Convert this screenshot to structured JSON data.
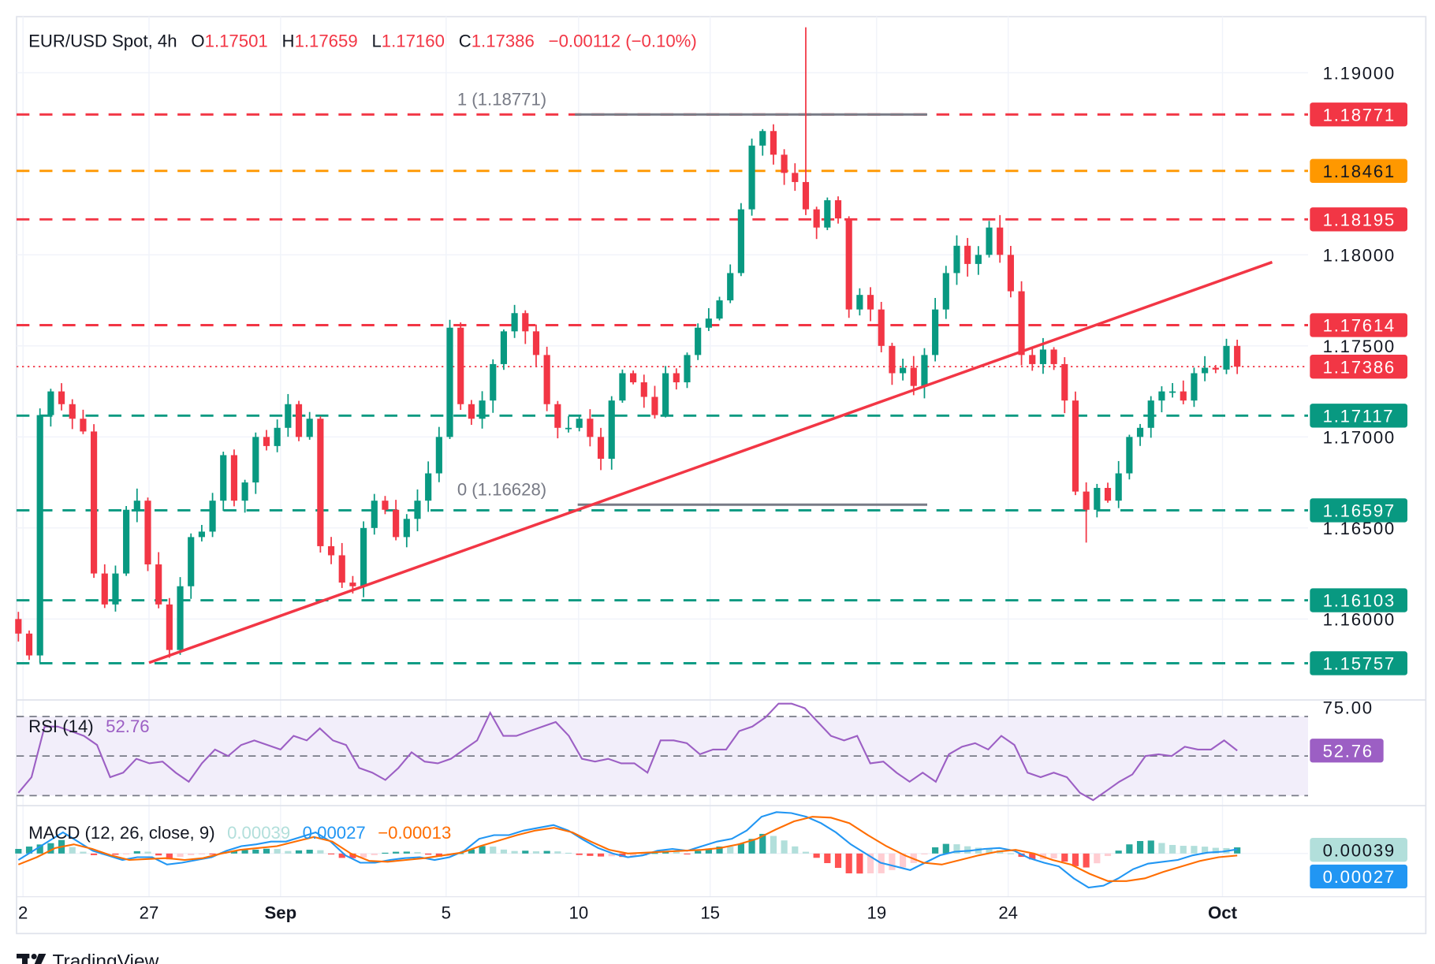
{
  "header": {
    "symbol": "EUR/USD Spot, 4h",
    "o_label": "O",
    "o_value": "1.17501",
    "h_label": "H",
    "h_value": "1.17659",
    "l_label": "L",
    "l_value": "1.17160",
    "c_label": "C",
    "c_value": "1.17386",
    "change": "−0.00112 (−0.10%)"
  },
  "colors": {
    "up": "#089981",
    "down": "#f23645",
    "orange": "#ff9800",
    "rsi": "#9c5fc4",
    "macd": "#2196f3",
    "signal": "#ff6d00",
    "hist_up_strong": "#26a69a",
    "hist_up_weak": "#b2dfdb",
    "hist_down_strong": "#ff5252",
    "hist_down_weak": "#ffcdd2"
  },
  "price_axis": {
    "ticks": [
      "1.19000",
      "1.18000",
      "1.17500",
      "1.17000",
      "1.16500",
      "1.16000"
    ]
  },
  "levels": [
    {
      "value": "1.18771",
      "color": "red"
    },
    {
      "value": "1.18461",
      "color": "orange"
    },
    {
      "value": "1.18195",
      "color": "red"
    },
    {
      "value": "1.17614",
      "color": "red"
    },
    {
      "value": "1.17117",
      "color": "green"
    },
    {
      "value": "1.16597",
      "color": "green"
    },
    {
      "value": "1.16103",
      "color": "green"
    },
    {
      "value": "1.15757",
      "color": "green"
    }
  ],
  "last_price": "1.17386",
  "fibonacci": {
    "top_label": "1 (1.18771)",
    "top_value": 1.18771,
    "bottom_label": "0 (1.16628)",
    "bottom_value": 1.16628
  },
  "x_axis": {
    "ticks": [
      {
        "label": "2",
        "bold": false
      },
      {
        "label": "27",
        "bold": false
      },
      {
        "label": "Sep",
        "bold": true
      },
      {
        "label": "5",
        "bold": false
      },
      {
        "label": "10",
        "bold": false
      },
      {
        "label": "15",
        "bold": false
      },
      {
        "label": "19",
        "bold": false
      },
      {
        "label": "24",
        "bold": false
      },
      {
        "label": "Oct",
        "bold": true
      }
    ]
  },
  "chart_data": [
    {
      "type": "candlestick",
      "title": "EUR/USD Spot, 4h",
      "ylim": [
        1.1545,
        1.1935
      ],
      "closes": [
        1.1592,
        1.158,
        1.1712,
        1.1725,
        1.1718,
        1.171,
        1.1703,
        1.1625,
        1.1608,
        1.1625,
        1.166,
        1.1665,
        1.163,
        1.1608,
        1.1583,
        1.1618,
        1.1645,
        1.1648,
        1.1665,
        1.169,
        1.1665,
        1.1675,
        1.17,
        1.1695,
        1.1705,
        1.1718,
        1.17,
        1.171,
        1.164,
        1.1635,
        1.162,
        1.1618,
        1.165,
        1.1665,
        1.166,
        1.1645,
        1.1655,
        1.1665,
        1.168,
        1.17,
        1.176,
        1.1718,
        1.171,
        1.172,
        1.174,
        1.1758,
        1.1768,
        1.1758,
        1.1745,
        1.1718,
        1.1705,
        1.1705,
        1.171,
        1.17,
        1.1688,
        1.172,
        1.1735,
        1.173,
        1.1722,
        1.1712,
        1.1735,
        1.173,
        1.1745,
        1.176,
        1.1765,
        1.1775,
        1.179,
        1.1825,
        1.186,
        1.1868,
        1.1855,
        1.1845,
        1.184,
        1.1825,
        1.1815,
        1.183,
        1.182,
        1.177,
        1.1778,
        1.177,
        1.175,
        1.1735,
        1.1738,
        1.1728,
        1.1745,
        1.177,
        1.179,
        1.1805,
        1.1795,
        1.18,
        1.1815,
        1.18,
        1.178,
        1.1745,
        1.174,
        1.1748,
        1.174,
        1.172,
        1.167,
        1.166,
        1.1672,
        1.1665,
        1.168,
        1.17,
        1.1705,
        1.172,
        1.1725,
        1.1725,
        1.172,
        1.1735,
        1.1738,
        1.1737,
        1.175,
        1.17386
      ],
      "wick_extremes": [
        {
          "index": 73,
          "high": 1.1925
        },
        {
          "index": 99,
          "low": 1.1642
        }
      ],
      "trendline": {
        "from": 1.1576,
        "to": 1.1796
      }
    },
    {
      "type": "line",
      "name": "RSI (14)",
      "label": "RSI (14)",
      "value_label": "52.76",
      "axis_label": "75.00",
      "bands": [
        30,
        50,
        70
      ],
      "ylim": [
        25,
        78
      ],
      "values": [
        31.4,
        39.3,
        64.9,
        64.9,
        62.6,
        60.2,
        55.6,
        39.3,
        41.6,
        48.6,
        46.3,
        47.2,
        41.6,
        37.0,
        46.3,
        53.3,
        50.0,
        55.6,
        57.9,
        55.6,
        53.3,
        60.2,
        57.9,
        64.0,
        57.9,
        55.6,
        44.0,
        41.6,
        37.9,
        44.0,
        51.9,
        47.2,
        46.3,
        48.6,
        53.3,
        57.9,
        71.9,
        60.2,
        60.2,
        62.6,
        64.9,
        67.2,
        60.2,
        48.6,
        47.2,
        48.6,
        46.3,
        46.3,
        41.6,
        57.9,
        57.9,
        56.5,
        50.9,
        53.3,
        53.3,
        62.6,
        64.9,
        69.5,
        76.5,
        76.5,
        74.2,
        67.2,
        60.2,
        57.9,
        60.2,
        46.3,
        47.2,
        41.6,
        37.0,
        41.6,
        37.0,
        50.9,
        54.7,
        56.5,
        53.3,
        60.2,
        55.6,
        41.6,
        39.3,
        41.6,
        39.3,
        31.4,
        27.7,
        32.3,
        37.0,
        40.7,
        50.0,
        50.9,
        50.0,
        54.7,
        53.3,
        53.3,
        57.9,
        52.76
      ]
    },
    {
      "type": "line+bar",
      "label": "MACD (12, 26, close, 9)",
      "histogram_label": "0.00039",
      "macd_label": "0.00027",
      "signal_label": "−0.00013",
      "macd": [
        -0.00042,
        0.00018,
        0.00078,
        0.00138,
        0.00078,
        0.00018,
        -0.00012,
        -0.00042,
        -0.00024,
        -0.00024,
        -0.00072,
        -0.0006,
        -0.00042,
        -0.00024,
        0.00018,
        0.00048,
        0.0006,
        0.00078,
        0.00078,
        0.00108,
        0.00138,
        0.00078,
        -0.00012,
        -0.0006,
        -0.0006,
        -0.00042,
        -0.0003,
        -0.00024,
        -0.00042,
        -0.00024,
        0.00018,
        0.00096,
        0.0012,
        0.0012,
        0.0015,
        0.00168,
        0.00186,
        0.0015,
        0.0009,
        0.00036,
        0,
        -0.00024,
        -0.00012,
        0.00018,
        0.0003,
        0.00018,
        0.00048,
        0.00078,
        0.00096,
        0.0015,
        0.0024,
        0.0027,
        0.00264,
        0.0024,
        0.00198,
        0.00138,
        0.0006,
        0,
        -0.0006,
        -0.00084,
        -0.00108,
        -0.0006,
        -0.00012,
        0.00012,
        0.00018,
        0.0003,
        0.00036,
        0.00018,
        -0.0003,
        -0.0006,
        -0.00084,
        -0.00162,
        -0.00222,
        -0.0021,
        -0.00162,
        -0.00102,
        -0.00066,
        -0.00054,
        -0.00042,
        -0.00012,
        6e-05,
        0.00012,
        0.00027
      ],
      "signal": [
        -0.00072,
        -0.00024,
        0.00036,
        0.0006,
        0.0003,
        -0.00012,
        -0.00042,
        -0.00036,
        -0.0003,
        -0.00042,
        -0.0003,
        0,
        0.00024,
        0.00036,
        0.00048,
        0.00078,
        0.00108,
        0.00078,
        0,
        -0.00048,
        -0.00054,
        -0.00042,
        -0.0003,
        -0.00012,
        6e-05,
        0.00048,
        0.00084,
        0.0012,
        0.0015,
        0.00168,
        0.00138,
        0.00078,
        0.00024,
        0,
        6e-05,
        0.00012,
        0.00018,
        0.00024,
        0.00036,
        0.0006,
        0.00096,
        0.00156,
        0.0021,
        0.0024,
        0.00234,
        0.00198,
        0.0012,
        0.00048,
        -0.00012,
        -0.0006,
        -0.00072,
        -0.00042,
        -0.00012,
        0.00012,
        0.00024,
        0,
        -0.00042,
        -0.00072,
        -0.00132,
        -0.0018,
        -0.0018,
        -0.00162,
        -0.0012,
        -0.00084,
        -0.00048,
        -0.00024,
        -0.00013
      ]
    }
  ],
  "branding": {
    "logo_text": "TradingView"
  }
}
